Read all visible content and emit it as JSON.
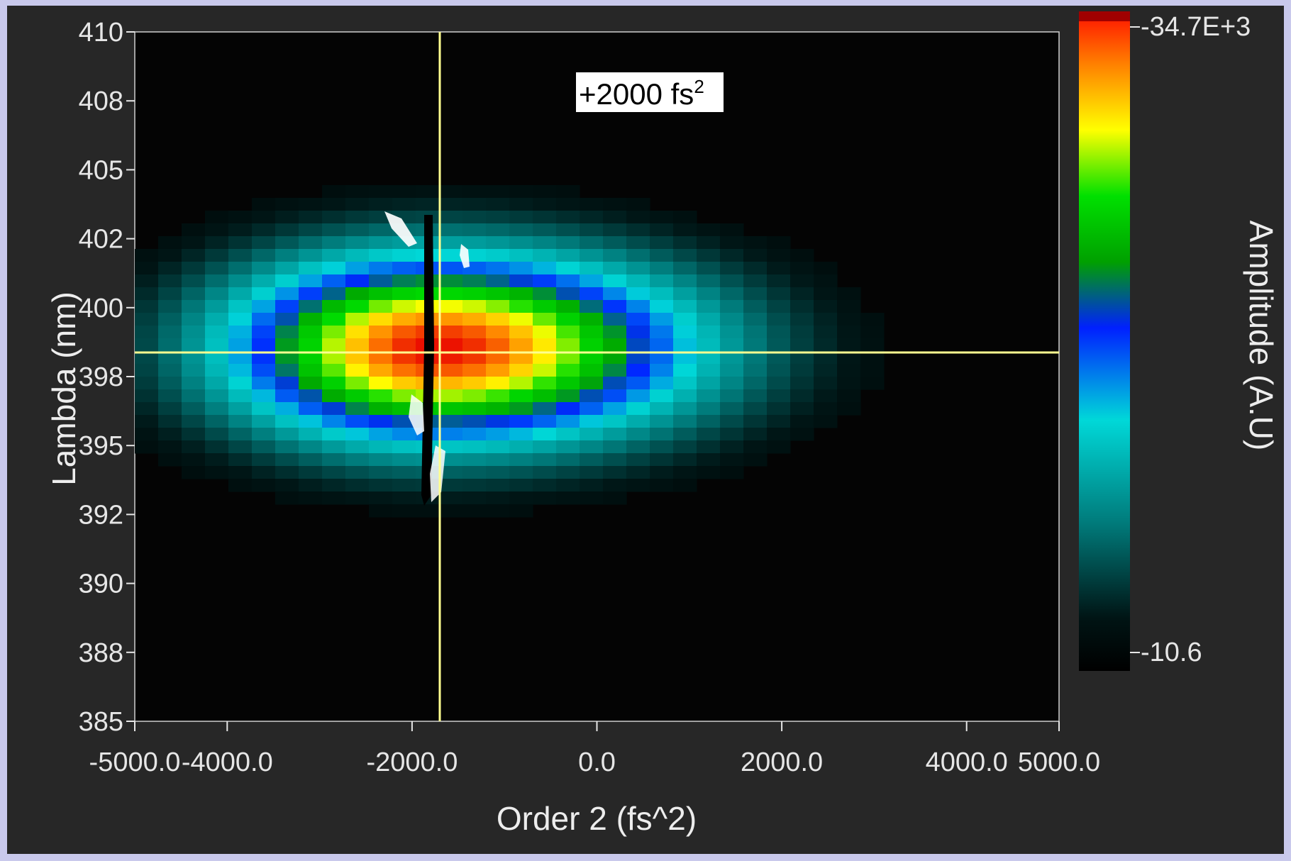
{
  "chart_data": {
    "type": "heatmap",
    "xlabel": "Order 2 (fs^2)",
    "ylabel": "Lambda (nm)",
    "colorbar_label": "Amplitude (A.U)",
    "x_ticks": [
      "-5000.0",
      "-4000.0",
      "-2000.0",
      "0.0",
      "2000.0",
      "4000.0",
      "5000.0"
    ],
    "x_tick_values": [
      -5000,
      -4000,
      -2000,
      0,
      2000,
      4000,
      5000
    ],
    "y_ticks": [
      "410",
      "408",
      "405",
      "402",
      "400",
      "398",
      "395",
      "392",
      "390",
      "388",
      "385"
    ],
    "xlim": [
      -5000,
      5000
    ],
    "colorbar": {
      "max_label": "-34.7E+3",
      "min_label": "-10.6"
    },
    "annotation": {
      "text": "+2000 fs",
      "superscript": "2"
    },
    "cursor": {
      "x": -1700,
      "y_label_position": 398.7
    },
    "peak": {
      "x": -1750,
      "y_label_position": 398.8
    },
    "colormap": [
      "#000000",
      "#003a3a",
      "#00c8c8",
      "#0032ff",
      "#00d200",
      "#ffff00",
      "#ff8c00",
      "#e60000"
    ],
    "grid": false
  }
}
